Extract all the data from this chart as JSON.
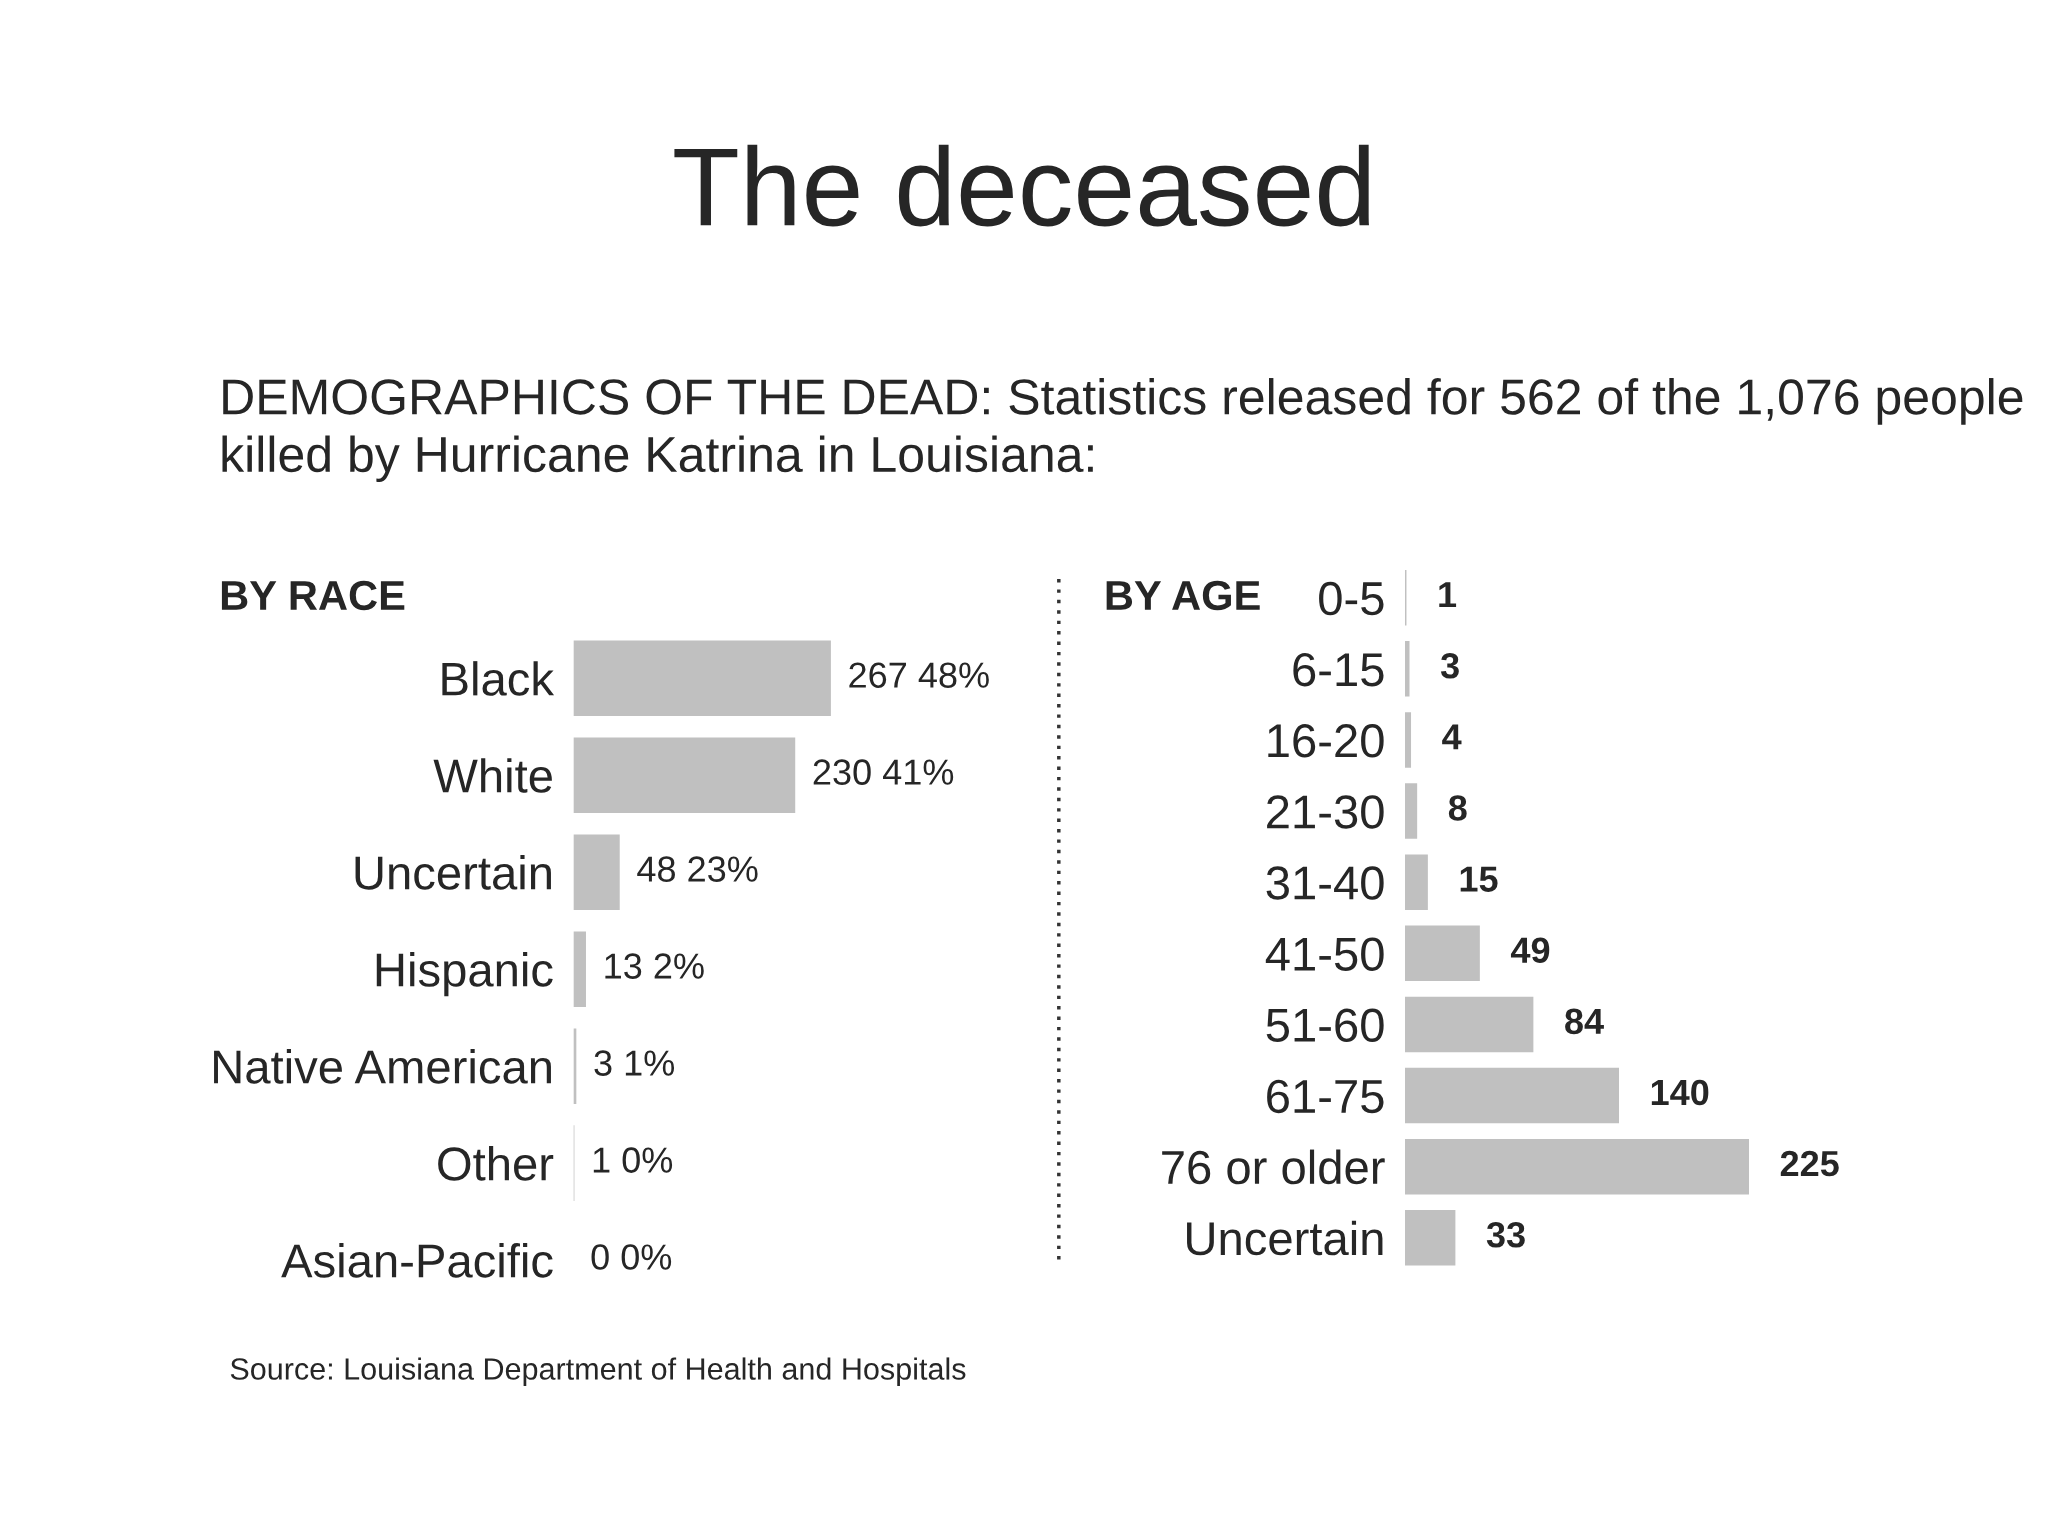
{
  "chart_data": [
    {
      "type": "other",
      "title": "The deceased",
      "subtitle": "DEMOGRAPHICS OF THE DEAD: Statistics released for 562 of the 1,076 people killed by Hurricane Katrina in Louisiana:",
      "annotations": [
        "Source: Louisiana Department of Health and Hospitals"
      ]
    },
    {
      "type": "bar",
      "orientation": "horizontal",
      "title": "BY RACE",
      "categories": [
        "Black",
        "White",
        "Uncertain",
        "Hispanic",
        "Native American",
        "Other",
        "Asian-Pacific"
      ],
      "values": [
        267,
        230,
        48,
        13,
        3,
        1,
        0
      ],
      "color": "#c0c0c0",
      "value_labels": [
        "267 48%",
        "230 41%",
        "48 23%",
        "13 2%",
        "3 1%",
        "1 0%",
        "0 0%"
      ],
      "tick_labels": "y",
      "grid": false,
      "legend": false
    },
    {
      "type": "bar",
      "orientation": "horizontal",
      "title": "BY AGE",
      "categories": [
        "0-5",
        "6-15",
        "16-20",
        "21-30",
        "31-40",
        "41-50",
        "51-60",
        "61-75",
        "76 or older",
        "Uncertain"
      ],
      "values": [
        1,
        3,
        4,
        8,
        15,
        49,
        84,
        140,
        225,
        33
      ],
      "color": "#c0c0c0",
      "data_labels": true,
      "tick_labels": "y",
      "grid": false,
      "legend": false
    }
  ]
}
